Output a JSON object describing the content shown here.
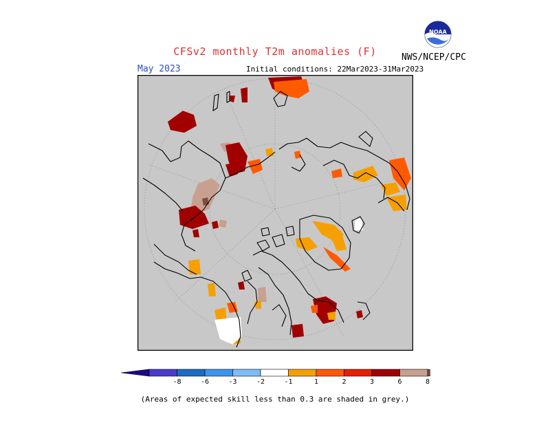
{
  "header": {
    "title": "CFSv2 monthly T2m anomalies (F)",
    "month": "May 2023",
    "initial_conditions": "Initial conditions: 22Mar2023-31Mar2023",
    "agency": "NWS/NCEP/CPC",
    "logo_text": "NOAA"
  },
  "colorbar": {
    "labels": [
      "-8",
      "-6",
      "-3",
      "-2",
      "-1",
      "1",
      "2",
      "3",
      "6",
      "8"
    ],
    "colors": [
      "#1c0a8a",
      "#4b3ad0",
      "#1a6cc8",
      "#3d94f0",
      "#7cbcf8",
      "#ffffff",
      "#f5a000",
      "#ff5a00",
      "#e42000",
      "#a00000",
      "#c8a090",
      "#7a5040"
    ]
  },
  "map": {
    "background_color": "#c8c8c8",
    "no_skill_color": "#c8c8c8"
  },
  "footnote": "(Areas of expected skill less than 0.3 are shaded in grey.)"
}
